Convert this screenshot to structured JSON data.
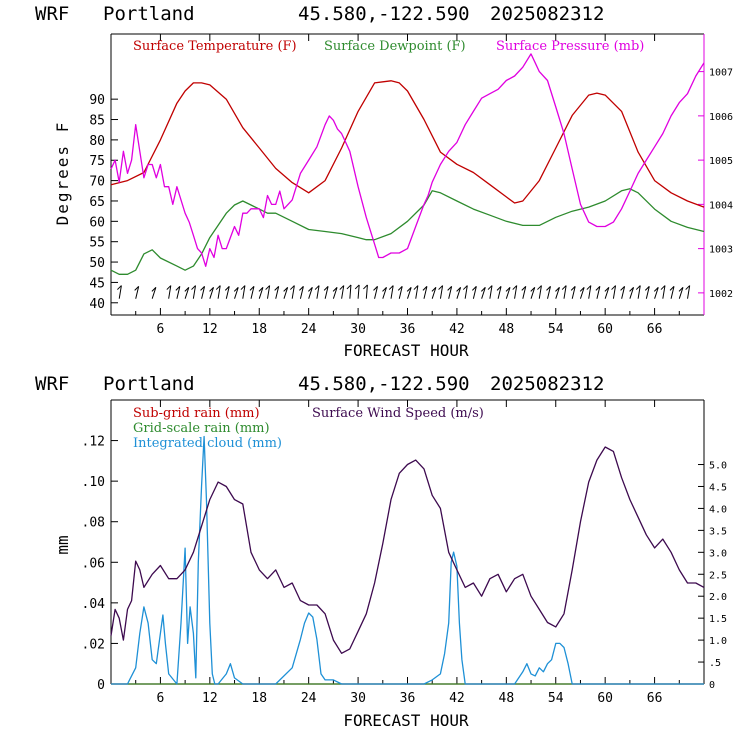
{
  "colors": {
    "temperature": "#c00000",
    "dewpoint": "#2e8b2e",
    "pressure": "#e000e0",
    "wind_speed": "#3d0a4f",
    "integrated_cloud": "#1e90d6",
    "subgrid_rain": "#c00000",
    "gridscale_rain": "#2e8b2e",
    "axis": "#000000"
  },
  "chart_data": [
    {
      "type": "line",
      "header": {
        "model": "WRF",
        "location": "Portland",
        "coords": "45.580,-122.590",
        "run": "2025082312"
      },
      "xlabel": "FORECAST HOUR",
      "ylabel": "Degrees F",
      "xlim": [
        0,
        72
      ],
      "ylim": [
        37,
        106
      ],
      "y2lim": [
        1001.5,
        1007.85
      ],
      "xticks": [
        6,
        12,
        18,
        24,
        30,
        36,
        42,
        48,
        54,
        60,
        66
      ],
      "xtick_labels": [
        "6",
        "12",
        "18",
        "24",
        "30",
        "36",
        "42",
        "48",
        "54",
        "60",
        "66"
      ],
      "yticks": [
        40,
        45,
        50,
        55,
        60,
        65,
        70,
        75,
        80,
        85,
        90
      ],
      "ytick_labels": [
        "40",
        "45",
        "50",
        "55",
        "60",
        "65",
        "70",
        "75",
        "80",
        "85",
        "90"
      ],
      "y2ticks": [
        1002,
        1003,
        1004,
        1005,
        1006,
        1007
      ],
      "y2tick_labels": [
        "1002",
        "1003",
        "1004",
        "1005",
        "1006",
        "1007"
      ],
      "series": [
        {
          "name": "Surface Temperature (F)",
          "axis": "left",
          "x": [
            0,
            2,
            4,
            6,
            8,
            9,
            10,
            11,
            12,
            14,
            16,
            18,
            20,
            22,
            24,
            26,
            28,
            30,
            32,
            34,
            35,
            36,
            38,
            40,
            42,
            44,
            46,
            48,
            49,
            50,
            52,
            54,
            56,
            58,
            59,
            60,
            62,
            64,
            66,
            68,
            70,
            72
          ],
          "y": [
            69,
            70,
            72,
            80,
            89,
            92,
            94,
            94,
            93.5,
            90,
            83,
            78,
            73,
            69.5,
            67,
            70,
            78,
            87,
            94,
            94.5,
            94,
            92,
            85,
            77,
            74,
            72,
            69,
            66,
            64.5,
            65,
            70,
            78,
            86,
            91,
            91.5,
            91,
            87,
            77,
            70,
            67,
            65,
            63.5
          ]
        },
        {
          "name": "Surface Dewpoint (F)",
          "axis": "left",
          "x": [
            0,
            1,
            2,
            3,
            4,
            5,
            6,
            8,
            9,
            10,
            11,
            12,
            13,
            14,
            15,
            16,
            17,
            18,
            19,
            20,
            22,
            24,
            26,
            28,
            30,
            31,
            32,
            34,
            36,
            38,
            39,
            40,
            42,
            44,
            46,
            48,
            50,
            52,
            54,
            56,
            58,
            60,
            62,
            63,
            64,
            66,
            68,
            70,
            72
          ],
          "y": [
            48,
            47,
            47,
            48,
            52,
            53,
            51,
            49,
            48,
            49,
            52,
            56,
            59,
            62,
            64,
            65,
            64,
            63,
            62,
            62,
            60,
            58,
            57.5,
            57,
            56,
            55.5,
            55.5,
            57,
            60,
            64,
            67.5,
            67,
            65,
            63,
            61.5,
            60,
            59,
            59,
            61,
            62.5,
            63.5,
            65,
            67.5,
            68,
            67,
            63,
            60,
            58.5,
            57.5
          ]
        },
        {
          "name": "Surface Pressure (mb)",
          "axis": "right",
          "x": [
            0,
            0.5,
            1,
            1.5,
            2,
            2.5,
            3,
            3.5,
            4,
            4.5,
            5,
            5.5,
            6,
            6.5,
            7,
            7.5,
            8,
            9,
            9.5,
            10,
            10.5,
            11,
            11.5,
            12,
            12.5,
            13,
            13.5,
            14,
            15,
            15.5,
            16,
            16.5,
            17,
            18,
            18.5,
            19,
            19.5,
            20,
            20.5,
            21,
            22,
            23,
            24,
            25,
            26,
            26.5,
            27,
            27.5,
            28,
            28.5,
            29,
            30,
            31,
            32,
            32.5,
            33,
            34,
            35,
            36,
            37,
            38,
            38.5,
            39,
            39.5,
            40,
            41,
            42,
            43,
            44,
            45,
            46,
            47,
            48,
            49,
            50,
            51,
            51.5,
            52,
            53,
            54,
            55,
            56,
            57,
            57.5,
            58,
            59,
            60,
            61,
            62,
            63,
            64,
            65,
            66,
            67,
            68,
            69,
            70,
            71,
            72
          ],
          "y": [
            1004.8,
            1005,
            1004.5,
            1005.2,
            1004.7,
            1005,
            1005.8,
            1005.2,
            1004.6,
            1004.9,
            1004.9,
            1004.6,
            1004.9,
            1004.4,
            1004.4,
            1004.0,
            1004.4,
            1003.8,
            1003.6,
            1003.3,
            1003.0,
            1002.9,
            1002.6,
            1003.0,
            1002.8,
            1003.3,
            1003.0,
            1003.0,
            1003.5,
            1003.3,
            1003.8,
            1003.8,
            1003.9,
            1003.9,
            1003.7,
            1004.2,
            1004.0,
            1004.0,
            1004.3,
            1003.9,
            1004.1,
            1004.7,
            1005.0,
            1005.3,
            1005.8,
            1006.0,
            1005.9,
            1005.7,
            1005.6,
            1005.4,
            1005.2,
            1004.4,
            1003.7,
            1003.1,
            1002.8,
            1002.8,
            1002.9,
            1002.9,
            1003.0,
            1003.5,
            1004.0,
            1004.2,
            1004.5,
            1004.7,
            1004.9,
            1005.2,
            1005.4,
            1005.8,
            1006.1,
            1006.4,
            1006.5,
            1006.6,
            1006.8,
            1006.9,
            1007.1,
            1007.4,
            1007.2,
            1007.0,
            1006.8,
            1006.2,
            1005.6,
            1004.8,
            1004.0,
            1003.8,
            1003.6,
            1003.5,
            1003.5,
            1003.6,
            1003.9,
            1004.3,
            1004.7,
            1005.0,
            1005.3,
            1005.6,
            1006.0,
            1006.3,
            1006.5,
            1006.9,
            1007.2
          ]
        }
      ],
      "wind_barbs_hours": [
        1,
        3,
        5,
        7,
        8,
        9,
        10,
        11,
        12,
        13,
        14,
        15,
        16,
        17,
        18,
        19,
        20,
        21,
        22,
        23,
        24,
        25,
        26,
        27,
        28,
        29,
        30,
        31,
        32,
        33,
        34,
        35,
        36,
        37,
        38,
        39,
        40,
        41,
        42,
        43,
        44,
        45,
        46,
        47,
        48,
        49,
        50,
        51,
        52,
        53,
        54,
        55,
        56,
        57,
        58,
        59,
        60,
        61,
        62,
        63,
        64,
        65,
        66,
        67,
        68,
        69,
        70
      ]
    },
    {
      "type": "line",
      "header": {
        "model": "WRF",
        "location": "Portland",
        "coords": "45.580,-122.590",
        "run": "2025082312"
      },
      "xlabel": "FORECAST HOUR",
      "ylabel": "mm",
      "xlim": [
        0,
        72
      ],
      "ylim": [
        0,
        0.14
      ],
      "y2lim": [
        0,
        6.47
      ],
      "xticks": [
        6,
        12,
        18,
        24,
        30,
        36,
        42,
        48,
        54,
        60,
        66
      ],
      "xtick_labels": [
        "6",
        "12",
        "18",
        "24",
        "30",
        "36",
        "42",
        "48",
        "54",
        "60",
        "66"
      ],
      "yticks": [
        0,
        0.02,
        0.04,
        0.06,
        0.08,
        0.1,
        0.12
      ],
      "ytick_labels": [
        "0",
        ".02",
        ".04",
        ".06",
        ".08",
        ".10",
        ".12"
      ],
      "y2ticks": [
        0,
        0.5,
        1,
        1.5,
        2,
        2.5,
        3,
        3.5,
        4,
        4.5,
        5
      ],
      "y2tick_labels": [
        "0",
        ".5",
        "1.0",
        "1.5",
        "2.0",
        "2.5",
        "3.0",
        "3.5",
        "4.0",
        "4.5",
        "5.0"
      ],
      "series": [
        {
          "name": "Sub-grid rain (mm)",
          "axis": "left",
          "x": [
            0,
            72
          ],
          "y": [
            0,
            0
          ]
        },
        {
          "name": "Grid-scale rain (mm)",
          "axis": "left",
          "x": [
            0,
            72
          ],
          "y": [
            0,
            0
          ]
        },
        {
          "name": "Integrated cloud (mm)",
          "axis": "left",
          "x": [
            0,
            2,
            3,
            3.5,
            4,
            4.5,
            5,
            5.5,
            6,
            6.3,
            6.6,
            7,
            8,
            8.5,
            9,
            9.3,
            9.6,
            10,
            10.3,
            10.6,
            11,
            11.3,
            11.6,
            12,
            12.3,
            12.6,
            13,
            14,
            14.5,
            15,
            16,
            18,
            20,
            22,
            23,
            23.5,
            24,
            24.5,
            25,
            25.5,
            26,
            27,
            28,
            30,
            32,
            36,
            38,
            39,
            40,
            40.5,
            41,
            41.3,
            41.6,
            42,
            42.3,
            42.6,
            43,
            44,
            46,
            48,
            49,
            50,
            50.5,
            51,
            51.5,
            52,
            52.5,
            53,
            53.5,
            54,
            54.5,
            55,
            55.5,
            56,
            58,
            60,
            66,
            72
          ],
          "y": [
            0,
            0,
            0.008,
            0.025,
            0.038,
            0.03,
            0.012,
            0.01,
            0.025,
            0.034,
            0.02,
            0.005,
            0,
            0.03,
            0.067,
            0.02,
            0.038,
            0.025,
            0.003,
            0.06,
            0.098,
            0.122,
            0.09,
            0.03,
            0.005,
            0,
            0,
            0.005,
            0.01,
            0.003,
            0,
            0,
            0,
            0.008,
            0.022,
            0.03,
            0.035,
            0.033,
            0.022,
            0.005,
            0.002,
            0.002,
            0,
            0,
            0,
            0,
            0,
            0.002,
            0.005,
            0.015,
            0.03,
            0.06,
            0.065,
            0.058,
            0.03,
            0.012,
            0,
            0,
            0,
            0,
            0,
            0.006,
            0.01,
            0.005,
            0.004,
            0.008,
            0.006,
            0.01,
            0.012,
            0.02,
            0.02,
            0.018,
            0.01,
            0,
            0,
            0,
            0,
            0
          ]
        },
        {
          "name": "Surface Wind Speed (m/s)",
          "axis": "right",
          "x": [
            0,
            0.5,
            1,
            1.5,
            2,
            2.5,
            3,
            3.5,
            4,
            5,
            6,
            7,
            8,
            9,
            10,
            11,
            12,
            13,
            14,
            15,
            16,
            17,
            18,
            19,
            20,
            21,
            22,
            23,
            24,
            25,
            26,
            27,
            28,
            29,
            30,
            31,
            32,
            33,
            34,
            35,
            36,
            37,
            38,
            39,
            40,
            41,
            42,
            43,
            44,
            45,
            46,
            47,
            48,
            49,
            50,
            51,
            52,
            53,
            54,
            55,
            56,
            57,
            58,
            59,
            60,
            61,
            62,
            63,
            64,
            65,
            66,
            67,
            68,
            69,
            70,
            71,
            72
          ],
          "y": [
            1.1,
            1.7,
            1.5,
            1.0,
            1.7,
            1.9,
            2.8,
            2.6,
            2.2,
            2.5,
            2.7,
            2.4,
            2.4,
            2.6,
            3.0,
            3.6,
            4.2,
            4.6,
            4.5,
            4.2,
            4.1,
            3.0,
            2.6,
            2.4,
            2.6,
            2.2,
            2.3,
            1.9,
            1.8,
            1.8,
            1.6,
            1.0,
            0.7,
            0.8,
            1.2,
            1.6,
            2.3,
            3.2,
            4.2,
            4.8,
            5.0,
            5.1,
            4.9,
            4.3,
            4.0,
            3.0,
            2.6,
            2.2,
            2.3,
            2.0,
            2.4,
            2.5,
            2.1,
            2.4,
            2.5,
            2.0,
            1.7,
            1.4,
            1.3,
            1.6,
            2.6,
            3.7,
            4.6,
            5.1,
            5.4,
            5.3,
            4.7,
            4.2,
            3.8,
            3.4,
            3.1,
            3.3,
            3.0,
            2.6,
            2.3,
            2.3,
            2.2
          ]
        }
      ]
    }
  ]
}
